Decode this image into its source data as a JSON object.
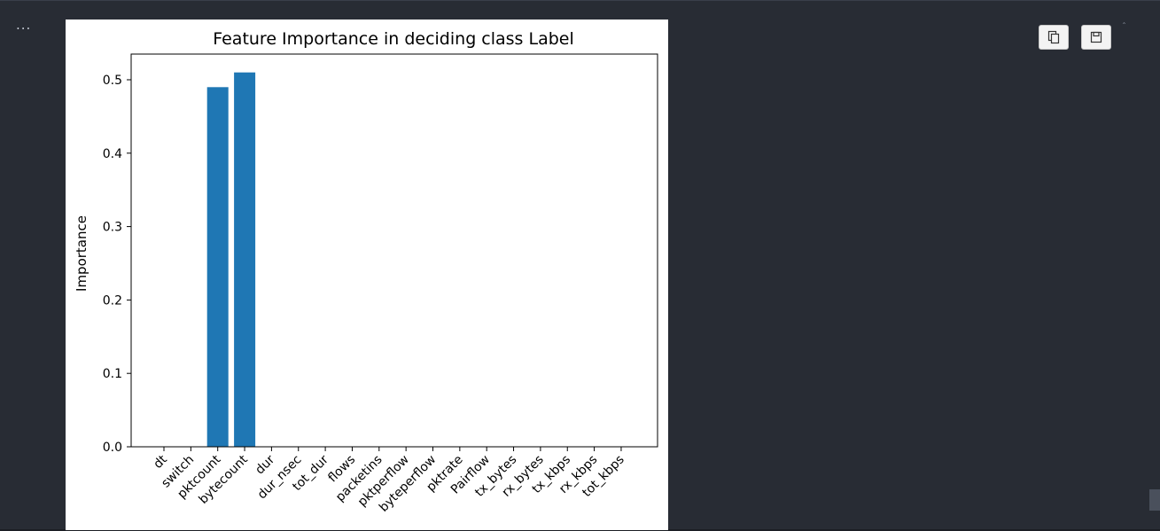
{
  "gutter": {
    "menu_label": "..."
  },
  "toolbar": {
    "copy_icon": "copy-icon",
    "save_icon": "save-icon",
    "collapse_label": "ˆ"
  },
  "chart_data": {
    "type": "bar",
    "title": "Feature Importance in deciding class Label",
    "xlabel": "",
    "ylabel": "Importance",
    "categories": [
      "dt",
      "switch",
      "pktcount",
      "bytecount",
      "dur",
      "dur_nsec",
      "tot_dur",
      "flows",
      "packetins",
      "pktperflow",
      "byteperflow",
      "pktrate",
      "Pairflow",
      "tx_bytes",
      "rx_bytes",
      "tx_kbps",
      "rx_kbps",
      "tot_kbps"
    ],
    "values": [
      0,
      0,
      0.49,
      0.51,
      0,
      0,
      0,
      0,
      0,
      0,
      0,
      0,
      0,
      0,
      0,
      0,
      0,
      0
    ],
    "ylim": [
      0,
      0.535
    ],
    "yticks": [
      0.0,
      0.1,
      0.2,
      0.3,
      0.4,
      0.5
    ],
    "ytick_labels": [
      "0.0",
      "0.1",
      "0.2",
      "0.3",
      "0.4",
      "0.5"
    ],
    "grid": false,
    "bar_color": "#1f77b4"
  }
}
